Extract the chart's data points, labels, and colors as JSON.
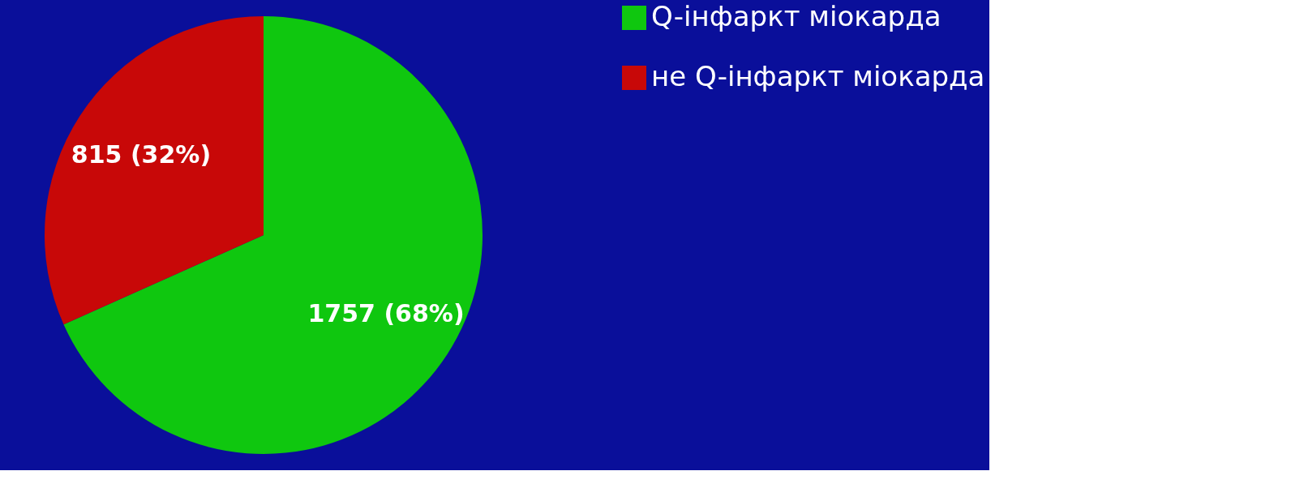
{
  "chart_data": {
    "type": "pie",
    "categories": [
      "Q-інфаркт міокарда",
      "не Q-інфаркт міокарда"
    ],
    "values": [
      1757,
      815
    ],
    "colors": [
      "#0fc70f",
      "#c80808"
    ],
    "value_labels": [
      "1757 (68%)",
      "815 (32%)"
    ],
    "legend": "right"
  }
}
